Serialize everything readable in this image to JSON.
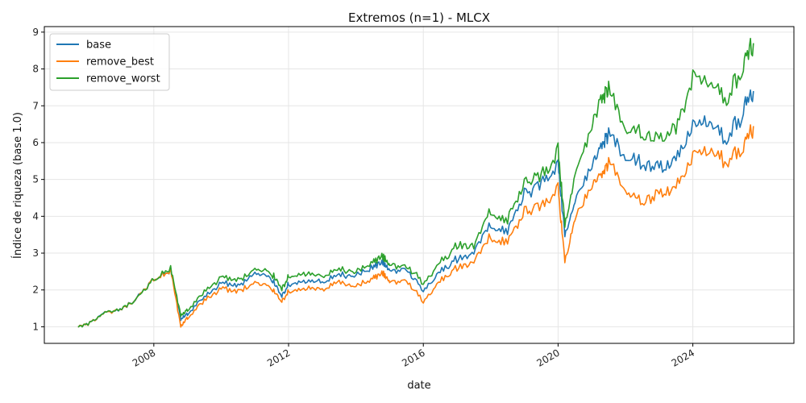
{
  "chart_data": {
    "type": "line",
    "title": "Extremos (n=1) - MLCX",
    "xlabel": "date",
    "ylabel": "Índice de riqueza (base 1.0)",
    "x_ticks": [
      "2008",
      "2012",
      "2016",
      "2020",
      "2024"
    ],
    "x_tick_years": [
      2008,
      2012,
      2016,
      2020,
      2024
    ],
    "y_ticks": [
      1,
      2,
      3,
      4,
      5,
      6,
      7,
      8,
      9
    ],
    "xlim": [
      2004.75,
      2027.0
    ],
    "ylim": [
      0.55,
      9.15
    ],
    "grid": true,
    "legend_position": "top-left",
    "x": [
      2005.75,
      2006.0,
      2006.5,
      2007.0,
      2007.5,
      2008.0,
      2008.5,
      2008.8,
      2009.0,
      2009.5,
      2010.0,
      2010.5,
      2011.0,
      2011.5,
      2011.8,
      2012.0,
      2012.5,
      2013.0,
      2013.5,
      2014.0,
      2014.5,
      2014.8,
      2015.0,
      2015.5,
      2016.0,
      2016.5,
      2017.0,
      2017.5,
      2018.0,
      2018.5,
      2019.0,
      2019.5,
      2020.0,
      2020.2,
      2020.5,
      2021.0,
      2021.3,
      2021.5,
      2022.0,
      2022.5,
      2023.0,
      2023.5,
      2024.0,
      2024.5,
      2025.0,
      2025.5,
      2025.8
    ],
    "series": [
      {
        "name": "base",
        "color": "#1f77b4",
        "values": [
          1.0,
          1.05,
          1.35,
          1.45,
          1.75,
          2.3,
          2.5,
          1.2,
          1.35,
          1.8,
          2.2,
          2.1,
          2.45,
          2.3,
          1.85,
          2.15,
          2.25,
          2.2,
          2.4,
          2.4,
          2.6,
          2.75,
          2.5,
          2.55,
          2.0,
          2.5,
          2.85,
          3.0,
          3.8,
          3.6,
          4.6,
          4.9,
          5.4,
          3.5,
          4.3,
          5.4,
          6.0,
          6.25,
          5.6,
          5.5,
          5.3,
          5.5,
          6.4,
          6.5,
          6.1,
          6.85,
          7.4
        ]
      },
      {
        "name": "remove_best",
        "color": "#ff7f0e",
        "values": [
          1.0,
          1.05,
          1.35,
          1.45,
          1.75,
          2.3,
          2.5,
          1.0,
          1.25,
          1.7,
          2.05,
          1.95,
          2.2,
          2.05,
          1.7,
          1.95,
          2.05,
          2.0,
          2.2,
          2.1,
          2.3,
          2.45,
          2.2,
          2.25,
          1.7,
          2.25,
          2.6,
          2.75,
          3.45,
          3.3,
          4.1,
          4.3,
          4.75,
          2.8,
          3.85,
          4.85,
          5.2,
          5.45,
          4.7,
          4.45,
          4.6,
          4.75,
          5.6,
          5.75,
          5.5,
          5.9,
          6.45
        ]
      },
      {
        "name": "remove_worst",
        "color": "#2ca02c",
        "values": [
          1.0,
          1.05,
          1.35,
          1.45,
          1.75,
          2.3,
          2.55,
          1.3,
          1.45,
          1.95,
          2.35,
          2.25,
          2.55,
          2.45,
          2.05,
          2.35,
          2.45,
          2.35,
          2.55,
          2.5,
          2.75,
          2.9,
          2.65,
          2.65,
          2.2,
          2.75,
          3.2,
          3.2,
          4.15,
          3.9,
          4.9,
          5.1,
          5.75,
          3.8,
          5.0,
          6.5,
          7.3,
          7.45,
          6.4,
          6.3,
          6.1,
          6.35,
          7.65,
          7.6,
          7.2,
          8.1,
          8.7
        ]
      }
    ]
  }
}
